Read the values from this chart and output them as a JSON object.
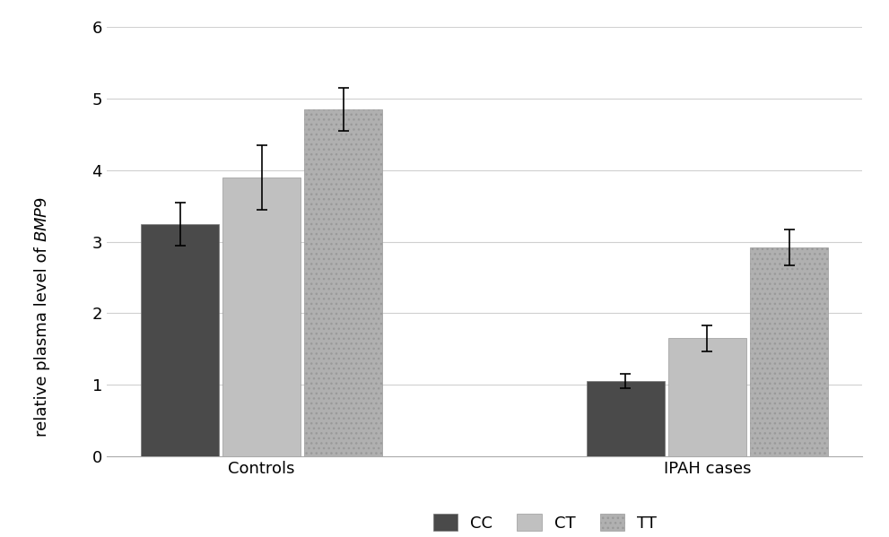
{
  "groups": [
    "Controls",
    "IPAH cases"
  ],
  "categories": [
    "CC",
    "CT",
    "TT"
  ],
  "values": {
    "Controls": [
      3.25,
      3.9,
      4.85
    ],
    "IPAH cases": [
      1.05,
      1.65,
      2.92
    ]
  },
  "errors": {
    "Controls": [
      0.3,
      0.45,
      0.3
    ],
    "IPAH cases": [
      0.1,
      0.18,
      0.25
    ]
  },
  "bar_colors_cc": "#4a4a4a",
  "bar_colors_ct": "#c0c0c0",
  "bar_colors_tt": "#b0b0b0",
  "ylabel_normal": "relative plasma level of ",
  "ylabel_italic": "BMP9",
  "ylim": [
    0,
    6
  ],
  "yticks": [
    0,
    1,
    2,
    3,
    4,
    5,
    6
  ],
  "background_color": "#ffffff",
  "grid_color": "#d0d0d0",
  "bar_width": 0.22,
  "legend_labels": [
    "CC",
    "CT",
    "TT"
  ],
  "figsize": [
    9.91,
    5.99
  ],
  "dpi": 100
}
